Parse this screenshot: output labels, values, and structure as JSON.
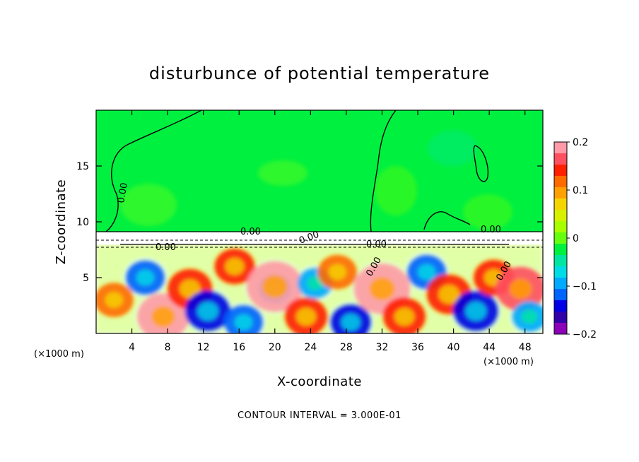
{
  "chart_data": {
    "type": "heatmap",
    "title": "disturbunce of potential temperature",
    "xlabel": "X-coordinate",
    "ylabel": "Z-coordinate",
    "x_units": "(×1000 m)",
    "xlim": [
      0,
      50
    ],
    "ylim": [
      0,
      20
    ],
    "x_ticks": [
      4,
      8,
      12,
      16,
      20,
      24,
      28,
      32,
      36,
      40,
      44,
      48
    ],
    "y_ticks": [
      5,
      10,
      15
    ],
    "colorbar": {
      "range": [
        -0.2,
        0.2
      ],
      "ticks": [
        0.2,
        0.1,
        0,
        -0.1,
        -0.2
      ],
      "tick_labels": [
        "0.2",
        "0.1",
        "0",
        "−0.1",
        "−0.2"
      ],
      "colors": [
        "#ff9aa8",
        "#ff5060",
        "#ff2000",
        "#ff6a00",
        "#ffa000",
        "#f5d500",
        "#d6f000",
        "#a8ff00",
        "#66ff10",
        "#00f040",
        "#00e6a0",
        "#00dce6",
        "#00aaff",
        "#0064ff",
        "#0000e6",
        "#3200a8",
        "#8c00b8"
      ]
    },
    "contour_labels": [
      "0.00",
      "0.00",
      "0.00",
      "0.00",
      "0.00",
      "0.00",
      "0.00",
      "0.00"
    ],
    "footer": "CONTOUR INTERVAL = 3.000E-01",
    "background_value": 0.0,
    "field_blobs": [
      {
        "x": 2.0,
        "z": 3.0,
        "value": 0.12
      },
      {
        "x": 5.5,
        "z": 5.0,
        "value": -0.12
      },
      {
        "x": 7.5,
        "z": 1.5,
        "value": 0.18
      },
      {
        "x": 10.5,
        "z": 4.0,
        "value": 0.15
      },
      {
        "x": 12.5,
        "z": 2.0,
        "value": -0.15
      },
      {
        "x": 15.5,
        "z": 6.0,
        "value": 0.13
      },
      {
        "x": 16.5,
        "z": 1.0,
        "value": -0.12
      },
      {
        "x": 20.0,
        "z": 4.0,
        "value": -0.09
      },
      {
        "x": 20.0,
        "z": 4.2,
        "value": 0.2
      },
      {
        "x": 23.5,
        "z": 1.5,
        "value": 0.14
      },
      {
        "x": 24.5,
        "z": 4.5,
        "value": -0.1
      },
      {
        "x": 27.0,
        "z": 5.5,
        "value": 0.12
      },
      {
        "x": 28.5,
        "z": 1.0,
        "value": -0.13
      },
      {
        "x": 32.0,
        "z": 4.0,
        "value": 0.2
      },
      {
        "x": 34.5,
        "z": 1.5,
        "value": 0.14
      },
      {
        "x": 37.0,
        "z": 5.5,
        "value": -0.12
      },
      {
        "x": 39.5,
        "z": 3.5,
        "value": 0.15
      },
      {
        "x": 42.5,
        "z": 2.0,
        "value": -0.15
      },
      {
        "x": 44.5,
        "z": 5.0,
        "value": 0.13
      },
      {
        "x": 47.5,
        "z": 4.0,
        "value": 0.17
      },
      {
        "x": 48.5,
        "z": 1.5,
        "value": -0.1
      }
    ]
  }
}
